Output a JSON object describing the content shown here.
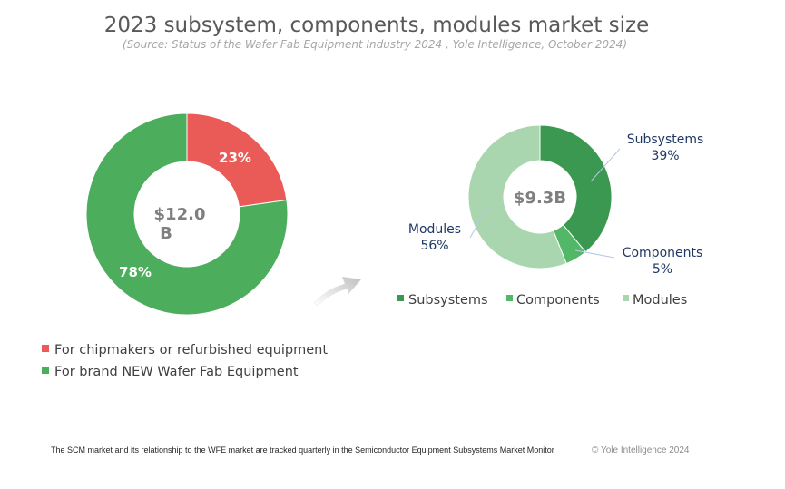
{
  "title": "2023 subsystem, components, modules market size",
  "subtitle": "(Source: Status of the Wafer Fab Equipment Industry 2024 , Yole Intelligence, October 2024)",
  "footnote": "The SCM market and its relationship to the WFE market are tracked quarterly in the Semiconductor Equipment Subsystems Market Monitor",
  "copyright": "© Yole Intelligence 2024",
  "arrow_icon": "curved-arrow-icon",
  "chart_data": [
    {
      "type": "pie",
      "style": "donut",
      "center_label_lines": [
        "$12.0",
        "B"
      ],
      "series": [
        {
          "name": "For chipmakers or refurbished equipment",
          "value": 23,
          "label": "23%",
          "color": "#ea5b58"
        },
        {
          "name": "For brand NEW Wafer Fab Equipment",
          "value": 78,
          "label": "78%",
          "color": "#4cae5c"
        }
      ],
      "legend": "bottom-left"
    },
    {
      "type": "pie",
      "style": "donut",
      "center_label_lines": [
        "$9.3B"
      ],
      "series": [
        {
          "name": "Subsystems",
          "value": 39,
          "callout_name": "Subsystems",
          "callout_value": "39%",
          "color": "#3a9850"
        },
        {
          "name": "Components",
          "value": 5,
          "callout_name": "Components",
          "callout_value": "5%",
          "color": "#52b766"
        },
        {
          "name": "Modules",
          "value": 56,
          "callout_name": "Modules",
          "callout_value": "56%",
          "color": "#a9d6ae"
        }
      ],
      "legend": "bottom"
    }
  ]
}
